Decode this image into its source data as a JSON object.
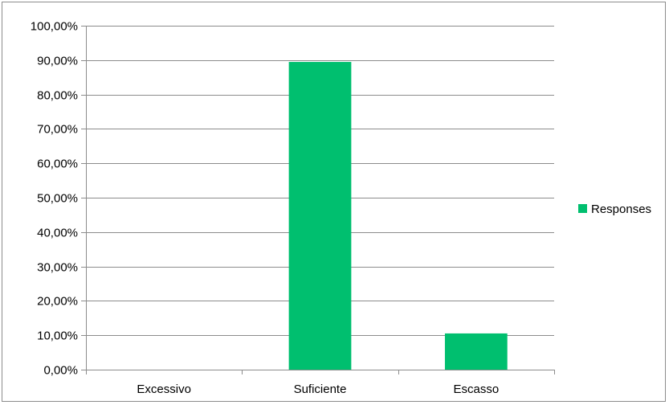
{
  "chart_data": {
    "type": "bar",
    "categories": [
      "Excessivo",
      "Suficiente",
      "Escasso"
    ],
    "series": [
      {
        "name": "Responses",
        "values": [
          0.0,
          89.47,
          10.53
        ],
        "color": "#00bf6f"
      }
    ],
    "ylim": [
      0,
      100
    ],
    "yticks": [
      "0,00%",
      "10,00%",
      "20,00%",
      "30,00%",
      "40,00%",
      "50,00%",
      "60,00%",
      "70,00%",
      "80,00%",
      "90,00%",
      "100,00%"
    ],
    "grid": true,
    "legend_position": "right"
  }
}
